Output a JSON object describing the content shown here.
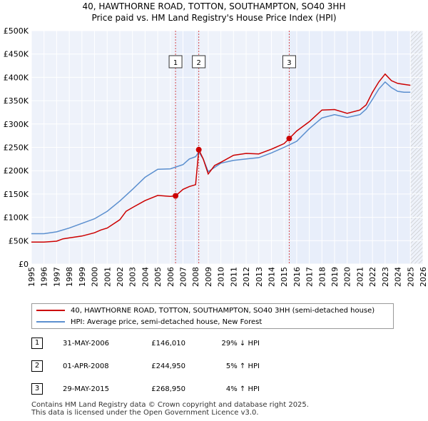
{
  "title": {
    "line1": "40, HAWTHORNE ROAD, TOTTON, SOUTHAMPTON, SO40 3HH",
    "line2": "Price paid vs. HM Land Registry's House Price Index (HPI)"
  },
  "chart_data": {
    "type": "line",
    "title": "40, HAWTHORNE ROAD, TOTTON, SOUTHAMPTON, SO40 3HH — Price paid vs. HM Land Registry's House Price Index (HPI)",
    "xlabel": "",
    "ylabel": "",
    "xlim": [
      1995,
      2026
    ],
    "ylim": [
      0,
      500000
    ],
    "grid": true,
    "x_ticks": [
      1995,
      1996,
      1997,
      1998,
      1999,
      2000,
      2001,
      2002,
      2003,
      2004,
      2005,
      2006,
      2007,
      2008,
      2009,
      2010,
      2011,
      2012,
      2013,
      2014,
      2015,
      2016,
      2017,
      2018,
      2019,
      2020,
      2021,
      2022,
      2023,
      2024,
      2025,
      2026
    ],
    "y_ticks": [
      {
        "value": 0,
        "label": "£0"
      },
      {
        "value": 50000,
        "label": "£50K"
      },
      {
        "value": 100000,
        "label": "£100K"
      },
      {
        "value": 150000,
        "label": "£150K"
      },
      {
        "value": 200000,
        "label": "£200K"
      },
      {
        "value": 250000,
        "label": "£250K"
      },
      {
        "value": 300000,
        "label": "£300K"
      },
      {
        "value": 350000,
        "label": "£350K"
      },
      {
        "value": 400000,
        "label": "£400K"
      },
      {
        "value": 450000,
        "label": "£450K"
      },
      {
        "value": 500000,
        "label": "£500K"
      }
    ],
    "series": [
      {
        "name": "40, HAWTHORNE ROAD, TOTTON, SOUTHAMPTON, SO40 3HH (semi-detached house)",
        "color": "#cc0000",
        "x": [
          1995.0,
          1996.0,
          1997.0,
          1997.5,
          1998.0,
          1999.0,
          2000.0,
          2000.5,
          2001.0,
          2002.0,
          2002.5,
          2003.0,
          2004.0,
          2005.0,
          2006.0,
          2006.41,
          2007.0,
          2007.5,
          2008.0,
          2008.25,
          2008.6,
          2009.0,
          2009.5,
          2010.0,
          2011.0,
          2012.0,
          2013.0,
          2014.0,
          2015.0,
          2015.41,
          2016.0,
          2017.0,
          2018.0,
          2019.0,
          2020.0,
          2021.0,
          2021.5,
          2022.0,
          2022.5,
          2023.0,
          2023.5,
          2024.0,
          2024.5,
          2025.0
        ],
        "values": [
          47000,
          47000,
          49000,
          54000,
          56000,
          60000,
          67000,
          73000,
          77000,
          95000,
          113000,
          121000,
          136000,
          147000,
          145000,
          146010,
          160000,
          166000,
          170000,
          244950,
          225000,
          193000,
          211000,
          218000,
          233000,
          237000,
          236000,
          246000,
          258000,
          268950,
          285000,
          305000,
          330000,
          331000,
          323000,
          330000,
          341000,
          368000,
          390000,
          407000,
          393000,
          387000,
          385000,
          383000
        ]
      },
      {
        "name": "HPI: Average price, semi-detached house, New Forest",
        "color": "#5b8fcf",
        "x": [
          1995.0,
          1996.0,
          1997.0,
          1998.0,
          1999.0,
          2000.0,
          2001.0,
          2002.0,
          2003.0,
          2004.0,
          2005.0,
          2006.0,
          2007.0,
          2007.5,
          2008.0,
          2008.25,
          2008.6,
          2009.0,
          2009.5,
          2010.0,
          2011.0,
          2012.0,
          2013.0,
          2014.0,
          2015.0,
          2016.0,
          2017.0,
          2018.0,
          2019.0,
          2020.0,
          2021.0,
          2021.5,
          2022.0,
          2022.5,
          2023.0,
          2023.5,
          2024.0,
          2024.5,
          2025.0
        ],
        "values": [
          65000,
          65000,
          69000,
          77000,
          87000,
          97000,
          113000,
          135000,
          160000,
          186000,
          203000,
          204000,
          213000,
          225000,
          230000,
          240000,
          225000,
          198000,
          207000,
          216000,
          222000,
          225000,
          228000,
          238000,
          250000,
          263000,
          290000,
          313000,
          320000,
          314000,
          320000,
          332000,
          353000,
          375000,
          390000,
          378000,
          370000,
          368000,
          368000
        ]
      }
    ],
    "transactions": [
      {
        "num": "1",
        "date": "31-MAY-2006",
        "price": "£146,010",
        "hpi": "29% ↓ HPI",
        "year": 2006.41,
        "value": 146010
      },
      {
        "num": "2",
        "date": "01-APR-2008",
        "price": "£244,950",
        "hpi": "5% ↑ HPI",
        "year": 2008.25,
        "value": 244950
      },
      {
        "num": "3",
        "date": "29-MAY-2015",
        "price": "£268,950",
        "hpi": "4% ↑ HPI",
        "year": 2015.41,
        "value": 268950
      }
    ],
    "shaded_ranges": [
      {
        "from": 2006.41,
        "to": 2008.25
      },
      {
        "from": 2015.41,
        "to": 2025.0
      }
    ],
    "forecast_from": 2025.0
  },
  "legend": {
    "property_label": "40, HAWTHORNE ROAD, TOTTON, SOUTHAMPTON, SO40 3HH (semi-detached house)",
    "hpi_label": "HPI: Average price, semi-detached house, New Forest"
  },
  "colors": {
    "property": "#cc0000",
    "hpi": "#5b8fcf",
    "shade": "#e8eefa",
    "background": "#eef2fa"
  },
  "footer": {
    "line1": "Contains HM Land Registry data © Crown copyright and database right 2025.",
    "line2": "This data is licensed under the Open Government Licence v3.0."
  }
}
